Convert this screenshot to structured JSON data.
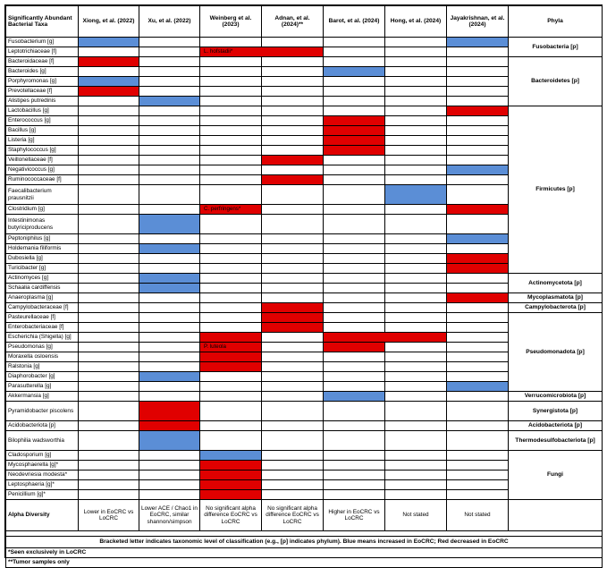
{
  "header": {
    "taxa": "Significantly Abundant Bacterial Taxa",
    "studies": [
      "Xiong, et al. (2022)",
      "Xu, et al. (2022)",
      "Weinberg et al. (2023)",
      "Adnan, et al. (2024)**",
      "Barot, et al. (2024)",
      "Hong, et al. (2024)",
      "Jayakrishnan, et al. (2024)"
    ],
    "phyla": "Phyla"
  },
  "colors": {
    "blue": "#5b8ed6",
    "red": "#e00000"
  },
  "rows": [
    {
      "name": "Fusobacterium [g]"
    },
    {
      "name": "Leptotrichiaceae [f]",
      "note": "L. hofstadii*"
    },
    {
      "name": "Bacteroidaceae [f]"
    },
    {
      "name": "Bacteroides [g]"
    },
    {
      "name": "Porphyromonas [g]"
    },
    {
      "name": "Prevotellaceae [f]"
    },
    {
      "name": "Alistipes putredinis"
    },
    {
      "name": "Lactobacillus [g]"
    },
    {
      "name": "Enterococcus [g]"
    },
    {
      "name": "Bacillus [g]"
    },
    {
      "name": "Listeria [g]"
    },
    {
      "name": "Staphylococcus [g]"
    },
    {
      "name": "Veillonellaceae [f]"
    },
    {
      "name": "Negativicoccus [g]"
    },
    {
      "name": "Ruminococcaceae [f]"
    },
    {
      "name": "Faecalibacterium prausnitzii"
    },
    {
      "name": "Clostridium [g]",
      "note": "C. perfringens*"
    },
    {
      "name": "Intestinimonas butyriciproducens"
    },
    {
      "name": "Peptoniphilus [g]"
    },
    {
      "name": "Holdemania filiformis"
    },
    {
      "name": "Dubosiella [g]"
    },
    {
      "name": "Turicibacter [g]"
    },
    {
      "name": "Actinomyces [g]"
    },
    {
      "name": "Schaalia cardiffensis"
    },
    {
      "name": "Anaeroplasma [g]"
    },
    {
      "name": "Campylobacteraceae [f]"
    },
    {
      "name": "Pasteurellaceae [f]"
    },
    {
      "name": "Enterobacteriaceae [f]"
    },
    {
      "name": "Escherichia (Shigella) [g]"
    },
    {
      "name": "Pseudomonas [g]",
      "note": "P. luteola"
    },
    {
      "name": "Moraxella osloensis"
    },
    {
      "name": "Ralstonia [g]"
    },
    {
      "name": "Diaphorobacter [g]"
    },
    {
      "name": "Parasutterella [g]"
    },
    {
      "name": "Akkermansia [g]"
    },
    {
      "name": "Pyramidobacter piscolens"
    },
    {
      "name": "Acidobacteriota [p]"
    },
    {
      "name": "Bilophilia wadsworthia"
    },
    {
      "name": "Cladosporium [g]"
    },
    {
      "name": "Mycosphaerella [g]*"
    },
    {
      "name": "Neodevriesia modesta*"
    },
    {
      "name": "Leptosphaeria [g]*"
    },
    {
      "name": "Penicillium [g]*"
    }
  ],
  "phyla": [
    "Fusobacteria [p]",
    "Bacteroidetes [p]",
    "Firmicutes [p]",
    "Actinomycetota [p]",
    "Mycoplasmatota [p]",
    "Campylobacterota [p]",
    "Pseudomonadota [p]",
    "Verrucomicrobiota [p]",
    "Synergistota [p]",
    "Acidobacteriota [p]",
    "Thermodesulfobacteriota [p]",
    "Fungi"
  ],
  "alpha": {
    "label": "Alpha Diversity",
    "values": [
      "Lower in EoCRC vs LoCRC",
      "Lower ACE / Chao1 in EoCRC, similar shannon/simpson",
      "No significant alpha difference EoCRC vs LoCRC",
      "No significant alpha difference EoCRC vs LoCRC",
      "Higher in EoCRC vs LoCRC",
      "Not stated",
      "Not stated"
    ]
  },
  "legend": "Bracketed letter indicates taxonomic level of classification (e.g., [p] indicates phylum). Blue means increased in EoCRC; Red decreased in EoCRC",
  "footnotes": [
    "*Seen exclusively in LoCRC",
    "**Tumor samples only"
  ]
}
